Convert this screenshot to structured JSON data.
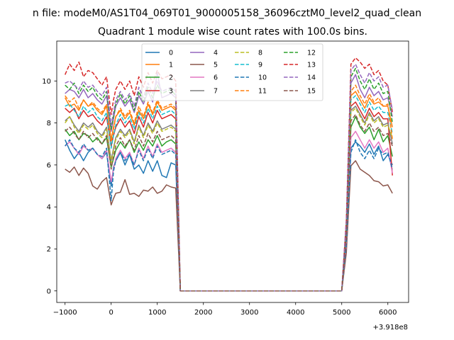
{
  "chart_data": {
    "type": "line",
    "suptitle": "n file: modeM0/AS1T04_069T01_9000005158_36096cztM0_level2_quad_clean",
    "title": "Quadrant 1 module wise count rates with 100.0s bins.",
    "xlabel": "",
    "ylabel": "",
    "x_offset_label": "+3.918e8",
    "xlim": [
      -1180,
      6450
    ],
    "ylim": [
      -0.55,
      11.9
    ],
    "xticks": [
      -1000,
      0,
      1000,
      2000,
      3000,
      4000,
      5000,
      6000
    ],
    "xtick_labels": [
      "−1000",
      "0",
      "1000",
      "2000",
      "3000",
      "4000",
      "5000",
      "6000"
    ],
    "yticks": [
      0,
      2,
      4,
      6,
      8,
      10
    ],
    "ytick_labels": [
      "0",
      "2",
      "4",
      "6",
      "8",
      "10"
    ],
    "legend_position": "top-center",
    "x": [
      -1000,
      -900,
      -800,
      -700,
      -600,
      -500,
      -400,
      -300,
      -200,
      -100,
      0,
      50,
      100,
      200,
      300,
      400,
      500,
      600,
      700,
      800,
      900,
      1000,
      1100,
      1200,
      1300,
      1400,
      1500,
      1600,
      2000,
      3000,
      4000,
      5000,
      5100,
      5200,
      5300,
      5400,
      5500,
      5600,
      5700,
      5800,
      5900,
      6000,
      6100
    ],
    "series": [
      {
        "name": "0",
        "color": "#1f77b4",
        "dash": "solid",
        "values": [
          7.2,
          6.7,
          6.3,
          6.6,
          6.2,
          6.6,
          6.8,
          6.5,
          6.3,
          6.6,
          5.0,
          5.9,
          6.2,
          6.6,
          6.0,
          6.5,
          5.8,
          6.0,
          5.6,
          6.2,
          5.7,
          6.2,
          5.5,
          5.4,
          6.1,
          6.0,
          0.0,
          0.0,
          0.0,
          0.0,
          0.0,
          0.0,
          2.0,
          6.8,
          7.1,
          6.9,
          6.6,
          7.0,
          6.5,
          6.9,
          6.2,
          6.5,
          6.0
        ]
      },
      {
        "name": "1",
        "color": "#ff7f0e",
        "dash": "solid",
        "values": [
          9.2,
          8.8,
          8.9,
          8.6,
          9.1,
          8.8,
          8.9,
          8.6,
          8.4,
          8.8,
          7.2,
          7.8,
          8.3,
          8.6,
          8.2,
          8.5,
          7.9,
          8.6,
          8.2,
          8.9,
          8.4,
          9.0,
          8.6,
          8.7,
          8.8,
          8.6,
          0.0,
          0.0,
          0.0,
          0.0,
          0.0,
          0.0,
          3.0,
          9.3,
          9.5,
          9.1,
          8.7,
          9.2,
          8.9,
          9.0,
          8.8,
          8.8,
          7.8
        ]
      },
      {
        "name": "2",
        "color": "#2ca02c",
        "dash": "solid",
        "values": [
          7.7,
          7.4,
          7.6,
          7.2,
          7.5,
          7.4,
          7.1,
          7.3,
          7.0,
          7.3,
          5.9,
          6.3,
          6.7,
          7.1,
          6.8,
          7.2,
          6.6,
          7.1,
          6.7,
          7.2,
          6.9,
          7.4,
          6.9,
          7.1,
          7.2,
          7.0,
          0.0,
          0.0,
          0.0,
          0.0,
          0.0,
          0.0,
          2.4,
          7.8,
          8.3,
          7.8,
          7.5,
          7.8,
          7.2,
          7.7,
          7.1,
          7.4,
          6.4
        ]
      },
      {
        "name": "3",
        "color": "#d62728",
        "dash": "solid",
        "values": [
          8.7,
          8.5,
          8.7,
          8.2,
          8.6,
          8.3,
          8.4,
          8.1,
          7.9,
          8.3,
          6.9,
          7.4,
          7.8,
          8.2,
          7.8,
          8.1,
          7.5,
          8.3,
          7.8,
          8.5,
          8.0,
          8.6,
          8.2,
          8.3,
          8.4,
          8.2,
          0.0,
          0.0,
          0.0,
          0.0,
          0.0,
          0.0,
          2.8,
          8.8,
          9.0,
          8.6,
          8.2,
          8.7,
          8.3,
          8.5,
          8.2,
          8.2,
          5.5
        ]
      },
      {
        "name": "4",
        "color": "#9467bd",
        "dash": "solid",
        "values": [
          9.4,
          9.6,
          9.5,
          9.2,
          9.6,
          9.2,
          9.4,
          9.1,
          8.9,
          9.3,
          7.6,
          8.2,
          8.8,
          9.2,
          8.8,
          9.1,
          8.5,
          9.3,
          8.9,
          9.5,
          9.0,
          10.4,
          9.2,
          9.3,
          9.4,
          9.2,
          0.0,
          0.0,
          0.0,
          0.0,
          0.0,
          0.0,
          3.1,
          9.9,
          10.3,
          9.6,
          9.2,
          9.7,
          9.3,
          9.5,
          9.1,
          9.2,
          8.3
        ]
      },
      {
        "name": "5",
        "color": "#8c564b",
        "dash": "solid",
        "values": [
          5.8,
          5.65,
          5.9,
          5.5,
          5.85,
          5.6,
          5.0,
          4.85,
          5.2,
          5.4,
          4.1,
          4.4,
          4.65,
          4.7,
          5.3,
          4.6,
          4.65,
          4.5,
          4.8,
          4.75,
          4.95,
          4.65,
          4.75,
          5.05,
          4.95,
          4.9,
          0.0,
          0.0,
          0.0,
          0.0,
          0.0,
          0.0,
          1.8,
          5.95,
          6.2,
          5.8,
          5.65,
          5.5,
          5.25,
          5.2,
          5.0,
          5.05,
          4.65
        ]
      },
      {
        "name": "6",
        "color": "#e377c2",
        "dash": "solid",
        "values": [
          6.9,
          7.1,
          6.8,
          6.5,
          6.9,
          6.7,
          6.8,
          6.5,
          6.3,
          6.7,
          5.2,
          5.8,
          6.3,
          6.7,
          6.3,
          6.6,
          6.0,
          6.8,
          6.3,
          6.9,
          6.4,
          7.0,
          6.6,
          6.7,
          6.8,
          6.6,
          0.0,
          0.0,
          0.0,
          0.0,
          0.0,
          0.0,
          2.2,
          7.3,
          7.6,
          7.2,
          6.8,
          7.2,
          6.8,
          7.1,
          6.6,
          6.8,
          5.6
        ]
      },
      {
        "name": "7",
        "color": "#7f7f7f",
        "dash": "solid",
        "values": [
          8.1,
          8.3,
          7.9,
          7.6,
          8.0,
          7.8,
          8.0,
          7.6,
          7.4,
          7.8,
          6.2,
          6.8,
          7.3,
          7.7,
          7.4,
          7.7,
          7.1,
          7.9,
          7.4,
          8.0,
          7.6,
          8.1,
          7.7,
          7.8,
          7.9,
          7.7,
          0.0,
          0.0,
          0.0,
          0.0,
          0.0,
          0.0,
          2.6,
          8.6,
          8.8,
          8.4,
          8.0,
          8.5,
          8.1,
          8.3,
          7.9,
          8.0,
          7.0
        ]
      },
      {
        "name": "8",
        "color": "#bcbd22",
        "dash": "dashed",
        "values": [
          8.0,
          8.3,
          7.8,
          7.5,
          7.9,
          7.7,
          7.9,
          7.5,
          7.3,
          7.7,
          6.1,
          6.7,
          7.2,
          7.6,
          7.3,
          7.6,
          7.0,
          7.8,
          7.3,
          7.9,
          7.5,
          8.0,
          7.6,
          7.7,
          7.8,
          7.6,
          0.0,
          0.0,
          0.0,
          0.0,
          0.0,
          0.0,
          2.6,
          8.5,
          8.7,
          8.3,
          7.9,
          8.4,
          8.0,
          8.2,
          7.8,
          7.9,
          7.3
        ]
      },
      {
        "name": "9",
        "color": "#17becf",
        "dash": "dashed",
        "values": [
          8.8,
          8.9,
          8.6,
          8.3,
          8.8,
          8.5,
          8.7,
          8.3,
          8.1,
          8.5,
          6.8,
          7.4,
          7.9,
          8.4,
          8.0,
          8.3,
          7.7,
          8.5,
          8.0,
          8.7,
          8.2,
          8.8,
          8.4,
          8.5,
          8.6,
          8.4,
          0.0,
          0.0,
          0.0,
          0.0,
          0.0,
          0.0,
          2.9,
          9.1,
          9.3,
          8.9,
          8.5,
          9.0,
          8.6,
          8.8,
          8.5,
          8.5,
          7.5
        ]
      },
      {
        "name": "10",
        "color": "#1f77b4",
        "dash": "dashed",
        "values": [
          6.9,
          7.2,
          6.8,
          6.6,
          7.0,
          6.7,
          6.8,
          6.5,
          6.4,
          6.8,
          4.3,
          5.7,
          6.2,
          6.6,
          6.2,
          6.5,
          6.0,
          6.7,
          6.2,
          6.8,
          6.3,
          6.9,
          6.5,
          6.6,
          6.7,
          6.5,
          0.0,
          0.0,
          0.0,
          0.0,
          0.0,
          0.0,
          2.2,
          6.6,
          7.2,
          6.6,
          6.3,
          6.7,
          6.3,
          6.8,
          6.5,
          6.6,
          5.8
        ]
      },
      {
        "name": "11",
        "color": "#ff7f0e",
        "dash": "dashed",
        "values": [
          9.3,
          9.0,
          9.2,
          8.7,
          9.1,
          8.8,
          9.0,
          8.7,
          8.5,
          8.9,
          7.1,
          7.7,
          8.3,
          8.7,
          8.3,
          8.6,
          8.0,
          8.8,
          8.3,
          9.0,
          8.5,
          9.1,
          8.7,
          8.8,
          8.9,
          8.7,
          0.0,
          0.0,
          0.0,
          0.0,
          0.0,
          0.0,
          3.0,
          9.5,
          9.8,
          9.3,
          8.9,
          9.4,
          9.0,
          9.2,
          8.8,
          8.9,
          7.2
        ]
      },
      {
        "name": "12",
        "color": "#2ca02c",
        "dash": "dashed",
        "values": [
          9.8,
          9.6,
          9.9,
          9.4,
          9.8,
          9.5,
          9.7,
          9.3,
          9.1,
          9.5,
          7.7,
          8.3,
          8.9,
          9.4,
          8.9,
          9.3,
          8.6,
          9.5,
          9.0,
          9.7,
          9.2,
          9.8,
          9.4,
          9.5,
          9.6,
          9.3,
          0.0,
          0.0,
          0.0,
          0.0,
          0.0,
          0.0,
          3.2,
          10.2,
          10.6,
          10.0,
          9.6,
          10.1,
          9.6,
          9.9,
          9.4,
          9.5,
          8.0
        ]
      },
      {
        "name": "13",
        "color": "#d62728",
        "dash": "dashed",
        "values": [
          10.3,
          10.8,
          10.5,
          10.9,
          10.2,
          10.5,
          10.4,
          10.1,
          9.8,
          10.2,
          8.4,
          9.1,
          9.6,
          10.0,
          9.6,
          10.0,
          9.3,
          10.2,
          9.7,
          10.4,
          9.9,
          10.5,
          10.1,
          10.2,
          10.3,
          10.0,
          0.0,
          0.0,
          0.0,
          0.0,
          0.0,
          0.0,
          3.4,
          10.8,
          11.1,
          10.9,
          10.6,
          10.8,
          10.3,
          10.5,
          10.0,
          9.8,
          8.5
        ]
      },
      {
        "name": "14",
        "color": "#9467bd",
        "dash": "dashed",
        "values": [
          9.9,
          10.0,
          9.8,
          9.6,
          10.0,
          9.7,
          9.8,
          9.5,
          9.3,
          9.7,
          7.9,
          8.5,
          9.1,
          9.5,
          9.1,
          9.4,
          8.8,
          9.7,
          9.2,
          9.9,
          9.4,
          10.0,
          9.5,
          9.6,
          9.7,
          9.5,
          0.0,
          0.0,
          0.0,
          0.0,
          0.0,
          0.0,
          3.3,
          10.5,
          10.8,
          10.3,
          9.9,
          10.4,
          10.0,
          10.2,
          9.7,
          9.8,
          8.6
        ]
      },
      {
        "name": "15",
        "color": "#8c564b",
        "dash": "dashed",
        "values": [
          7.6,
          7.8,
          7.5,
          7.2,
          7.6,
          7.3,
          7.5,
          7.2,
          7.0,
          7.4,
          5.8,
          6.4,
          6.9,
          7.3,
          6.9,
          7.2,
          6.7,
          7.4,
          6.9,
          7.5,
          7.1,
          7.6,
          7.2,
          7.3,
          7.4,
          7.2,
          0.0,
          0.0,
          0.0,
          0.0,
          0.0,
          0.0,
          2.5,
          8.1,
          8.4,
          7.9,
          7.6,
          8.0,
          7.6,
          7.8,
          7.4,
          7.5,
          6.9
        ]
      }
    ]
  }
}
